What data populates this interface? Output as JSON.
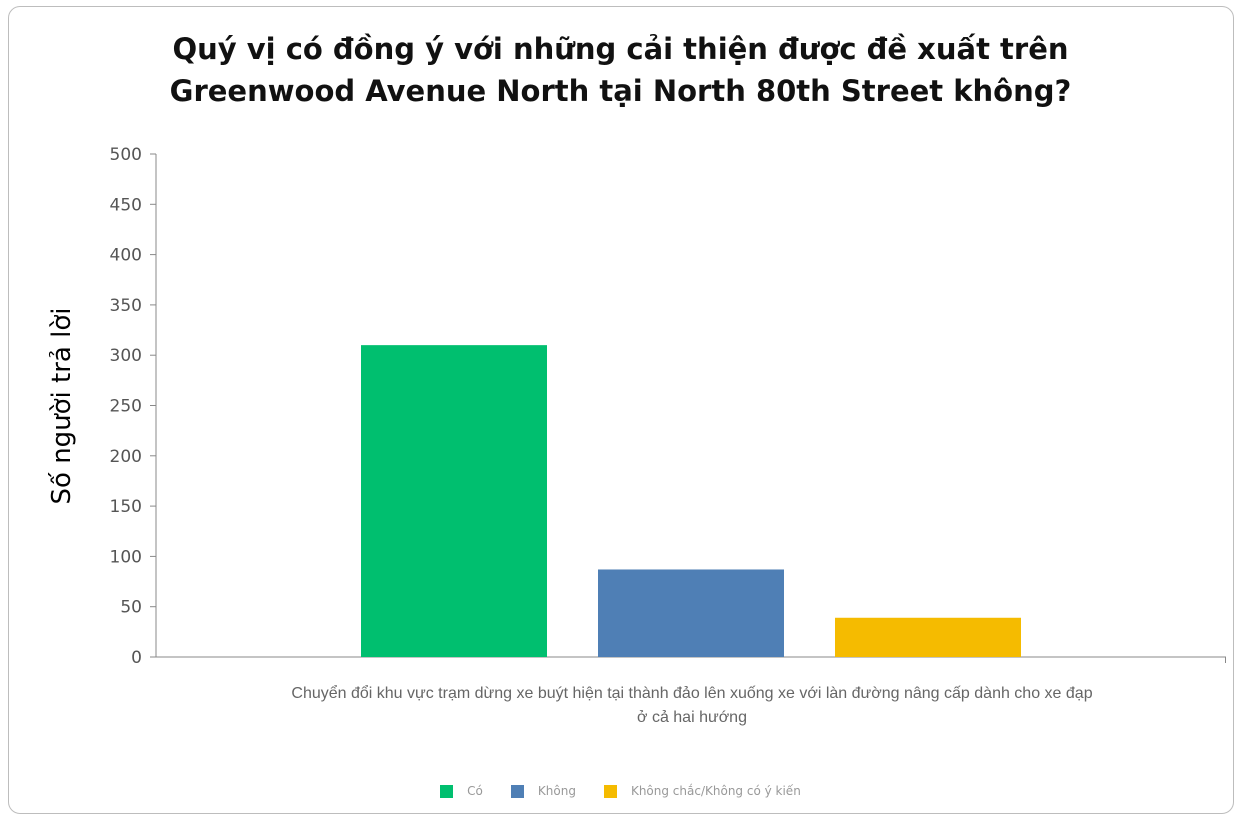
{
  "chart_data": {
    "type": "bar",
    "title_lines": [
      "Quý vị có đồng ý với những cải thiện được đề xuất trên",
      "Greenwood Avenue North tại North 80th Street không?"
    ],
    "ylabel": "Số người trả lời",
    "category_label_lines": [
      "Chuyển đổi khu vực trạm dừng xe buýt hiện tại thành đảo lên xuống xe với làn đường nâng cấp dành cho xe đạp",
      "ở cả hai hướng"
    ],
    "ylim": [
      0,
      500
    ],
    "yticks": [
      0,
      50,
      100,
      150,
      200,
      250,
      300,
      350,
      400,
      450,
      500
    ],
    "series": [
      {
        "name": "Có",
        "value": 310,
        "color": "#00bf6f"
      },
      {
        "name": "Không",
        "value": 87,
        "color": "#4f7fb5"
      },
      {
        "name": "Không chắc/Không có ý kiến",
        "value": 39,
        "color": "#f5bb00"
      }
    ],
    "grid": false,
    "legend_position": "bottom"
  }
}
